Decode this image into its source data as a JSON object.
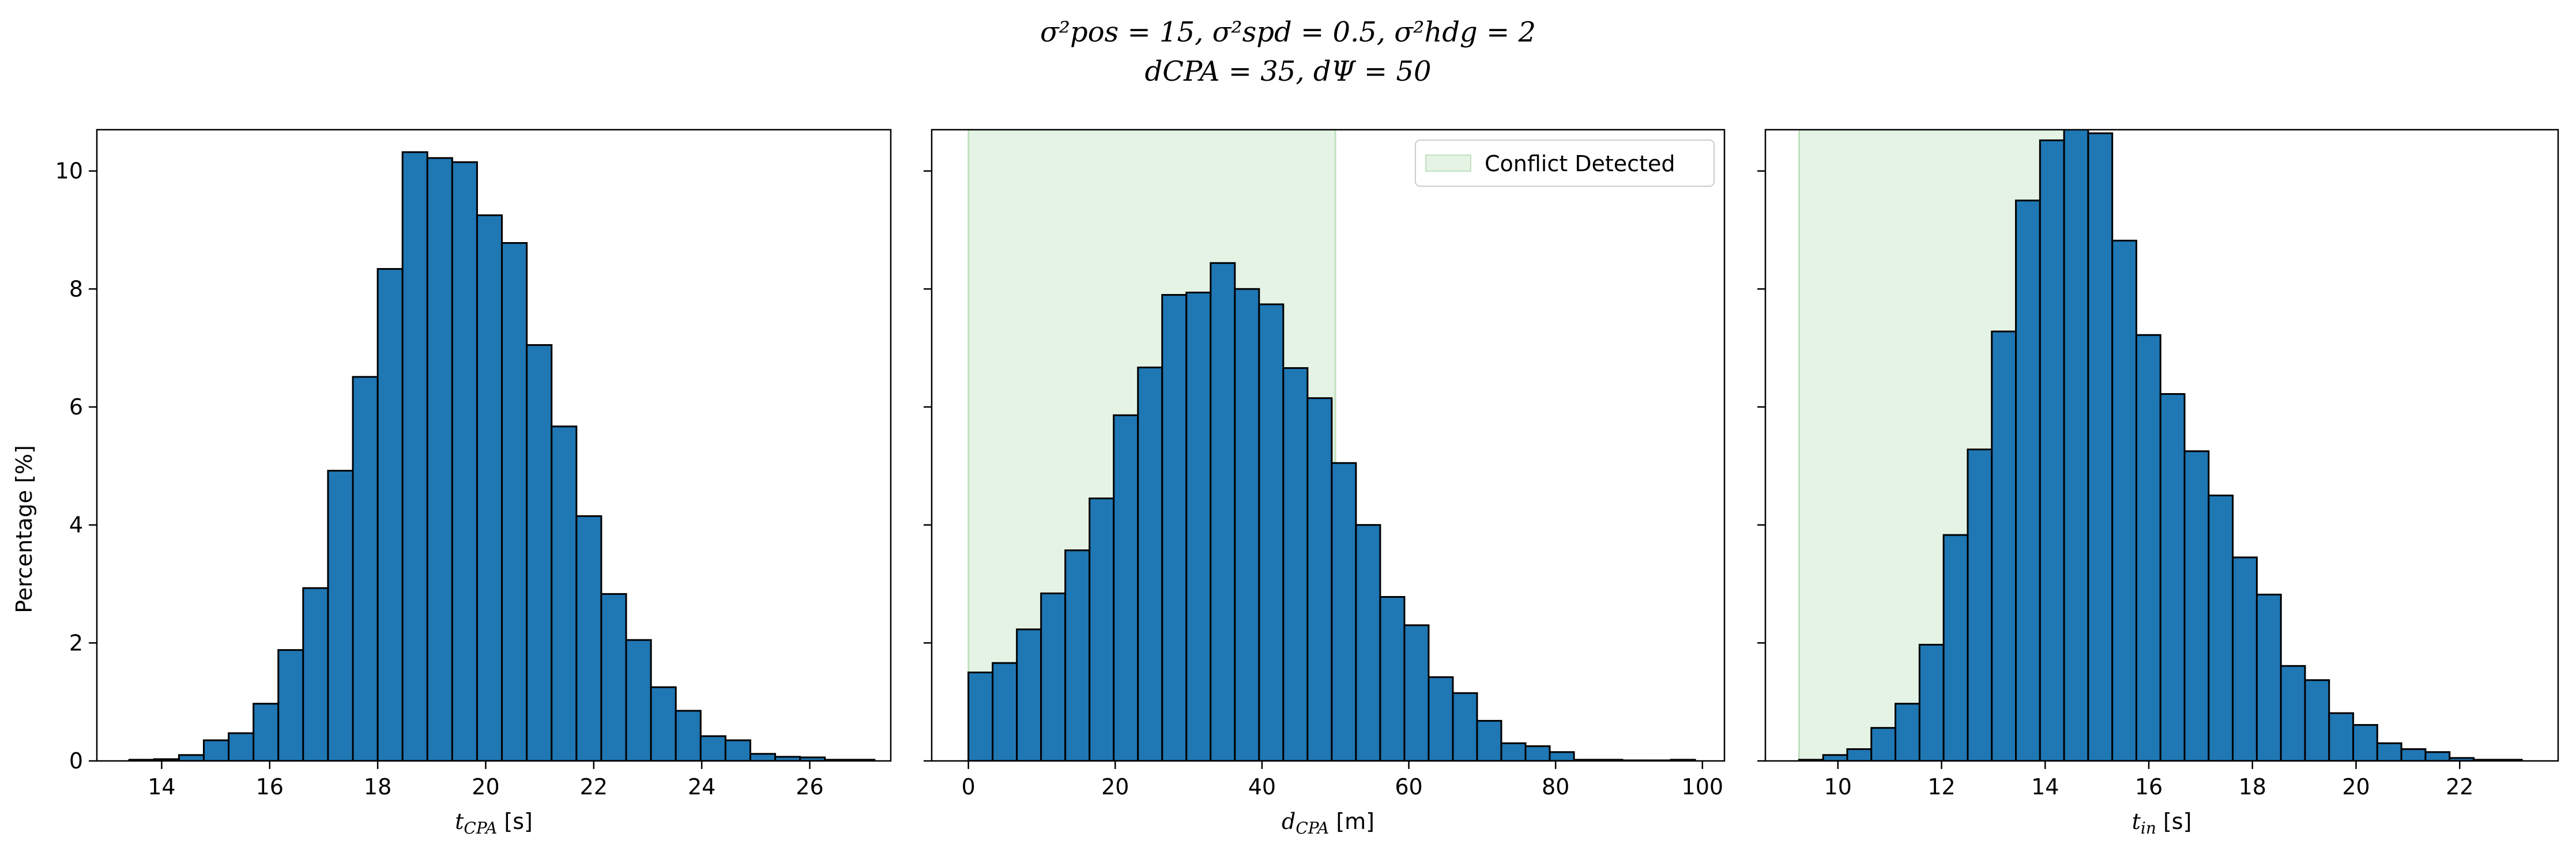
{
  "figure": {
    "title_line1": "σ²pos = 15, σ²spd = 0.5, σ²hdg = 2",
    "title_line2": "dCPA = 35, dΨ = 50",
    "ylabel": "Percentage [%]",
    "bar_color": "#1f77b4",
    "edge_color": "#000000",
    "shade_color": "#2ca02c",
    "shade_label": "Conflict Detected"
  },
  "chart_data": [
    {
      "type": "bar",
      "title": "",
      "xlabel": "tCPA [s]",
      "ylabel": "Percentage [%]",
      "xlim": [
        12.8,
        27.5
      ],
      "ylim": [
        0,
        10.7
      ],
      "xticks": [
        14,
        16,
        18,
        20,
        22,
        24,
        26
      ],
      "yticks": [
        0,
        2,
        4,
        6,
        8,
        10
      ],
      "bin_start": 13.4,
      "bin_width": 0.46,
      "values": [
        0.02,
        0.03,
        0.1,
        0.35,
        0.47,
        0.97,
        1.88,
        2.93,
        4.92,
        6.51,
        8.34,
        10.32,
        10.22,
        10.15,
        9.25,
        8.78,
        7.05,
        5.67,
        4.15,
        2.83,
        2.05,
        1.25,
        0.85,
        0.42,
        0.35,
        0.12,
        0.07,
        0.06,
        0.02,
        0.02
      ],
      "shade": null
    },
    {
      "type": "bar",
      "title": "",
      "xlabel": "dCPA [m]",
      "ylabel": "",
      "xlim": [
        -5,
        103
      ],
      "ylim": [
        0,
        10.7
      ],
      "xticks": [
        0,
        20,
        40,
        60,
        80,
        100
      ],
      "yticks": [
        0,
        2,
        4,
        6,
        8,
        10
      ],
      "bin_start": 0,
      "bin_width": 3.3,
      "values": [
        1.5,
        1.66,
        2.23,
        2.84,
        3.57,
        4.45,
        5.86,
        6.67,
        7.9,
        7.94,
        8.44,
        8.0,
        7.74,
        6.66,
        6.15,
        5.05,
        4.0,
        2.78,
        2.3,
        1.42,
        1.15,
        0.68,
        0.3,
        0.25,
        0.15,
        0.02,
        0.02,
        0.01,
        0.01,
        0.02
      ],
      "shade": {
        "from": 0,
        "to": 50,
        "label": "Conflict Detected",
        "legend": "top-right"
      }
    },
    {
      "type": "bar",
      "title": "",
      "xlabel": "tin [s]",
      "ylabel": "",
      "xlim": [
        8.6,
        23.9
      ],
      "ylim": [
        0,
        10.7
      ],
      "xticks": [
        10,
        12,
        14,
        16,
        18,
        20,
        22
      ],
      "yticks": [
        0,
        2,
        4,
        6,
        8,
        10
      ],
      "bin_start": 9.25,
      "bin_width": 0.465,
      "values": [
        0.02,
        0.1,
        0.2,
        0.56,
        0.97,
        1.97,
        3.83,
        5.28,
        7.28,
        9.5,
        10.52,
        10.85,
        10.64,
        8.82,
        7.22,
        6.22,
        5.25,
        4.5,
        3.45,
        2.82,
        1.61,
        1.37,
        0.81,
        0.61,
        0.3,
        0.2,
        0.15,
        0.05,
        0.02,
        0.02
      ],
      "shade": {
        "from": 9.25,
        "to": 14.7,
        "label": "",
        "legend": "none"
      }
    }
  ]
}
